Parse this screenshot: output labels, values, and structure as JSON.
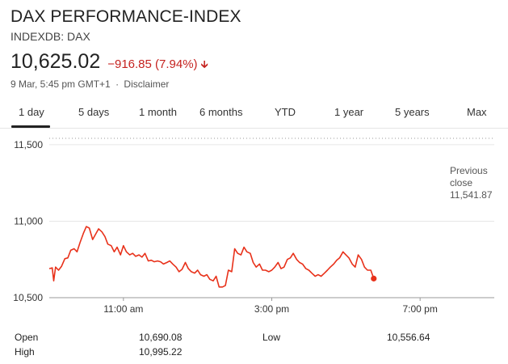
{
  "header": {
    "title": "DAX PERFORMANCE-INDEX",
    "subtitle": "INDEXDB: DAX",
    "price": "10,625.02",
    "change": "−916.85 (7.94%)",
    "change_direction": "down",
    "change_color": "#c5221f",
    "timestamp": "9 Mar, 5:45 pm GMT+1",
    "separator": "·",
    "disclaimer": "Disclaimer"
  },
  "tabs": [
    {
      "label": "1 day",
      "selected": true
    },
    {
      "label": "5 days",
      "selected": false
    },
    {
      "label": "1 month",
      "selected": false
    },
    {
      "label": "6 months",
      "selected": false
    },
    {
      "label": "YTD",
      "selected": false
    },
    {
      "label": "1 year",
      "selected": false
    },
    {
      "label": "5 years",
      "selected": false
    },
    {
      "label": "Max",
      "selected": false
    }
  ],
  "chart_data": {
    "type": "line",
    "title": "",
    "xlabel": "",
    "ylabel": "",
    "ylim": [
      10500,
      11600
    ],
    "yticks": [
      {
        "value": 10500,
        "label": "10,500"
      },
      {
        "value": 11000,
        "label": "11,000"
      },
      {
        "value": 11500,
        "label": "11,500"
      }
    ],
    "xticks": [
      {
        "value": 11,
        "label": "11:00 am"
      },
      {
        "value": 15,
        "label": "3:00 pm"
      },
      {
        "value": 19,
        "label": "7:00 pm"
      }
    ],
    "xlim": [
      9,
      21
    ],
    "line_color": "#e8311a",
    "reference_line": {
      "value": 11541.87,
      "label_lines": [
        "Previous",
        "close"
      ],
      "value_label": "11,541.87",
      "style": "dotted"
    },
    "series": [
      {
        "x": [
          9.0,
          9.08,
          9.12,
          9.17,
          9.25,
          9.33,
          9.42,
          9.5,
          9.58,
          9.67,
          9.75,
          9.83,
          9.92,
          10.0,
          10.08,
          10.17,
          10.25,
          10.33,
          10.42,
          10.5,
          10.58,
          10.67,
          10.75,
          10.83,
          10.92,
          11.0,
          11.08,
          11.17,
          11.25,
          11.33,
          11.42,
          11.5,
          11.58,
          11.67,
          11.75,
          11.83,
          11.92,
          12.0,
          12.08,
          12.17,
          12.25,
          12.33,
          12.42,
          12.5,
          12.58,
          12.67,
          12.75,
          12.83,
          12.92,
          13.0,
          13.08,
          13.17,
          13.25,
          13.33,
          13.42,
          13.5,
          13.58,
          13.67,
          13.75,
          13.83,
          13.92,
          14.0,
          14.08,
          14.17,
          14.25,
          14.33,
          14.42,
          14.5,
          14.58,
          14.67,
          14.75,
          14.83,
          14.92,
          15.0,
          15.08,
          15.17,
          15.25,
          15.33,
          15.42,
          15.5,
          15.58,
          15.67,
          15.75,
          15.83,
          15.92,
          16.0,
          16.08,
          16.17,
          16.25,
          16.33,
          16.42,
          16.5,
          16.58,
          16.67,
          16.75,
          16.83,
          16.92,
          17.0,
          17.08,
          17.17,
          17.25,
          17.33,
          17.42,
          17.5,
          17.58,
          17.67,
          17.75
        ],
        "values": [
          10690,
          10695,
          10610,
          10700,
          10680,
          10705,
          10755,
          10760,
          10810,
          10820,
          10800,
          10860,
          10920,
          10965,
          10955,
          10880,
          10915,
          10950,
          10930,
          10900,
          10850,
          10840,
          10800,
          10830,
          10780,
          10840,
          10800,
          10780,
          10790,
          10770,
          10780,
          10765,
          10790,
          10740,
          10745,
          10735,
          10740,
          10735,
          10720,
          10730,
          10740,
          10720,
          10700,
          10670,
          10685,
          10730,
          10690,
          10670,
          10660,
          10680,
          10650,
          10640,
          10650,
          10620,
          10610,
          10640,
          10570,
          10570,
          10580,
          10680,
          10670,
          10820,
          10790,
          10780,
          10830,
          10800,
          10790,
          10730,
          10700,
          10720,
          10680,
          10680,
          10670,
          10680,
          10700,
          10730,
          10690,
          10700,
          10750,
          10760,
          10790,
          10750,
          10730,
          10720,
          10690,
          10680,
          10660,
          10640,
          10650,
          10640,
          10660,
          10680,
          10700,
          10720,
          10745,
          10760,
          10800,
          10780,
          10760,
          10720,
          10700,
          10780,
          10750,
          10700,
          10680,
          10680,
          10625
        ]
      }
    ]
  },
  "stats": {
    "open_label": "Open",
    "open_value": "10,690.08",
    "high_label": "High",
    "high_value": "10,995.22",
    "low_label": "Low",
    "low_value": "10,556.64"
  }
}
